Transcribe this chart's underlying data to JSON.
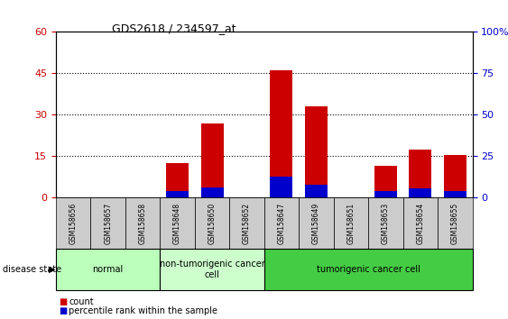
{
  "title": "GDS2618 / 234597_at",
  "samples": [
    "GSM158656",
    "GSM158657",
    "GSM158658",
    "GSM158648",
    "GSM158650",
    "GSM158652",
    "GSM158647",
    "GSM158649",
    "GSM158651",
    "GSM158653",
    "GSM158654",
    "GSM158655"
  ],
  "count_values": [
    0,
    0,
    0,
    12.5,
    27,
    0,
    46,
    33,
    0,
    11.5,
    17.5,
    15.5
  ],
  "percentile_values": [
    0,
    0,
    0,
    4.0,
    6.5,
    0,
    13.0,
    8.0,
    0,
    4.0,
    5.5,
    4.0
  ],
  "groups": [
    {
      "label": "normal",
      "start": 0,
      "end": 3,
      "color": "#bbffbb"
    },
    {
      "label": "non-tumorigenic cancer\ncell",
      "start": 3,
      "end": 6,
      "color": "#ccffcc"
    },
    {
      "label": "tumorigenic cancer cell",
      "start": 6,
      "end": 12,
      "color": "#44cc44"
    }
  ],
  "bar_color_count": "#cc0000",
  "bar_color_pct": "#0000cc",
  "ylim_left": [
    0,
    60
  ],
  "ylim_right": [
    0,
    100
  ],
  "yticks_left": [
    0,
    15,
    30,
    45,
    60
  ],
  "yticks_right": [
    0,
    25,
    50,
    75,
    100
  ],
  "bar_width": 0.65,
  "bg_color": "#ffffff",
  "label_bg_color": "#cccccc"
}
